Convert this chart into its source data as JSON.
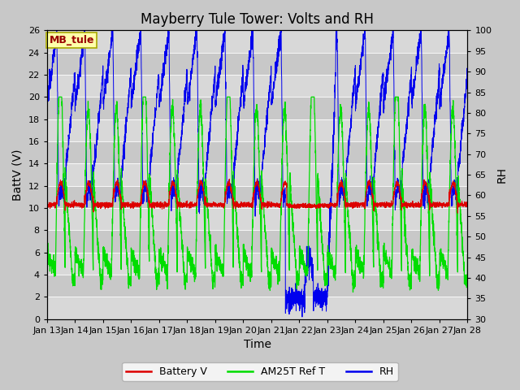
{
  "title": "Mayberry Tule Tower: Volts and RH",
  "xlabel": "Time",
  "ylabel_left": "BattV (V)",
  "ylabel_right": "RH",
  "annotation_text": "MB_tule",
  "left_ylim": [
    0,
    26
  ],
  "right_ylim": [
    30,
    100
  ],
  "left_yticks": [
    0,
    2,
    4,
    6,
    8,
    10,
    12,
    14,
    16,
    18,
    20,
    22,
    24,
    26
  ],
  "right_yticks": [
    30,
    35,
    40,
    45,
    50,
    55,
    60,
    65,
    70,
    75,
    80,
    85,
    90,
    95,
    100
  ],
  "date_labels": [
    "Jan 13",
    "Jan 14",
    "Jan 15",
    "Jan 16",
    "Jan 17",
    "Jan 18",
    "Jan 19",
    "Jan 20",
    "Jan 21",
    "Jan 22",
    "Jan 23",
    "Jan 24",
    "Jan 25",
    "Jan 26",
    "Jan 27",
    "Jan 28"
  ],
  "bg_color": "#c8c8c8",
  "plot_bg_light": "#d8d8d8",
  "plot_bg_dark": "#c0c0c0",
  "grid_color": "#ffffff",
  "battery_color": "#dd0000",
  "am25t_color": "#00dd00",
  "rh_color": "#0000ee",
  "legend_labels": [
    "Battery V",
    "AM25T Ref T",
    "RH"
  ],
  "title_fontsize": 12,
  "axis_fontsize": 10,
  "tick_fontsize": 8,
  "legend_fontsize": 9,
  "band_colors": [
    "#d8d8d8",
    "#c8c8c8"
  ]
}
